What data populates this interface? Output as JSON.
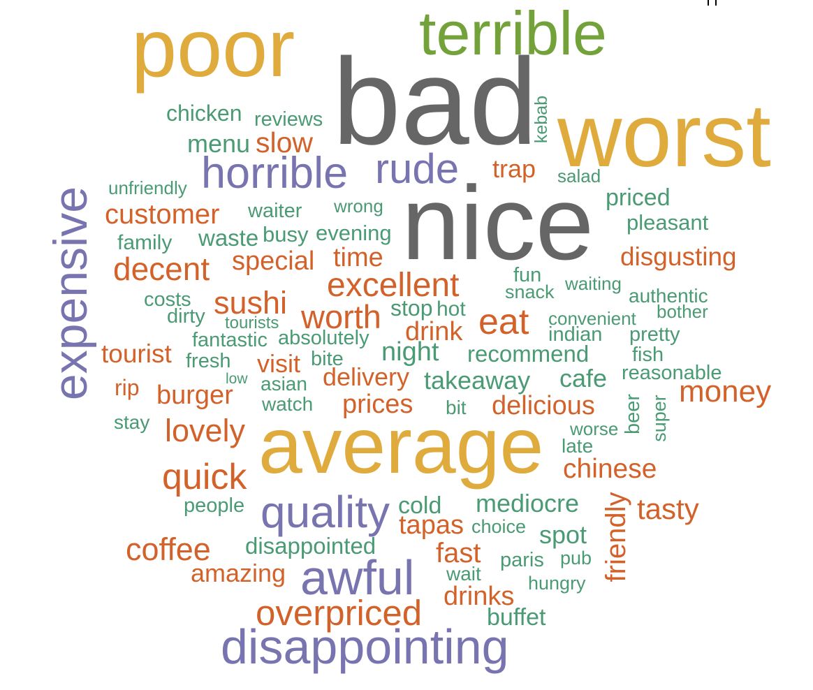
{
  "word_cloud": {
    "words": [
      {
        "text": "poor"
      },
      {
        "text": "terrible"
      },
      {
        "text": "bad"
      },
      {
        "text": "worst"
      },
      {
        "text": "nice"
      },
      {
        "text": "average"
      },
      {
        "text": "disappointing"
      },
      {
        "text": "expensive"
      },
      {
        "text": "horrible"
      },
      {
        "text": "rude"
      },
      {
        "text": "quality"
      },
      {
        "text": "awful"
      },
      {
        "text": "friendly"
      },
      {
        "text": "chicken"
      },
      {
        "text": "reviews"
      },
      {
        "text": "menu"
      },
      {
        "text": "slow"
      },
      {
        "text": "kebab"
      },
      {
        "text": "trap"
      },
      {
        "text": "salad"
      },
      {
        "text": "unfriendly"
      },
      {
        "text": "customer"
      },
      {
        "text": "waiter"
      },
      {
        "text": "wrong"
      },
      {
        "text": "priced"
      },
      {
        "text": "pleasant"
      },
      {
        "text": "family"
      },
      {
        "text": "waste"
      },
      {
        "text": "busy"
      },
      {
        "text": "evening"
      },
      {
        "text": "decent"
      },
      {
        "text": "special"
      },
      {
        "text": "time"
      },
      {
        "text": "disgusting"
      },
      {
        "text": "excellent"
      },
      {
        "text": "fun"
      },
      {
        "text": "snack"
      },
      {
        "text": "waiting"
      },
      {
        "text": "costs"
      },
      {
        "text": "sushi"
      },
      {
        "text": "authentic"
      },
      {
        "text": "dirty"
      },
      {
        "text": "stop"
      },
      {
        "text": "hot"
      },
      {
        "text": "bother"
      },
      {
        "text": "tourists"
      },
      {
        "text": "worth"
      },
      {
        "text": "eat"
      },
      {
        "text": "convenient"
      },
      {
        "text": "fantastic"
      },
      {
        "text": "absolutely"
      },
      {
        "text": "drink"
      },
      {
        "text": "indian"
      },
      {
        "text": "pretty"
      },
      {
        "text": "tourist"
      },
      {
        "text": "night"
      },
      {
        "text": "recommend"
      },
      {
        "text": "fish"
      },
      {
        "text": "fresh"
      },
      {
        "text": "visit"
      },
      {
        "text": "bite"
      },
      {
        "text": "reasonable"
      },
      {
        "text": "low"
      },
      {
        "text": "delivery"
      },
      {
        "text": "takeaway"
      },
      {
        "text": "cafe"
      },
      {
        "text": "rip"
      },
      {
        "text": "asian"
      },
      {
        "text": "money"
      },
      {
        "text": "burger"
      },
      {
        "text": "watch"
      },
      {
        "text": "prices"
      },
      {
        "text": "bit"
      },
      {
        "text": "delicious"
      },
      {
        "text": "beer"
      },
      {
        "text": "super"
      },
      {
        "text": "stay"
      },
      {
        "text": "lovely"
      },
      {
        "text": "worse"
      },
      {
        "text": "late"
      },
      {
        "text": "chinese"
      },
      {
        "text": "quick"
      },
      {
        "text": "people"
      },
      {
        "text": "cold"
      },
      {
        "text": "mediocre"
      },
      {
        "text": "tasty"
      },
      {
        "text": "tapas"
      },
      {
        "text": "choice"
      },
      {
        "text": "coffee"
      },
      {
        "text": "disappointed"
      },
      {
        "text": "spot"
      },
      {
        "text": "fast"
      },
      {
        "text": "paris"
      },
      {
        "text": "pub"
      },
      {
        "text": "amazing"
      },
      {
        "text": "wait"
      },
      {
        "text": "hungry"
      },
      {
        "text": "drinks"
      },
      {
        "text": "overpriced"
      },
      {
        "text": "buffet"
      }
    ]
  }
}
